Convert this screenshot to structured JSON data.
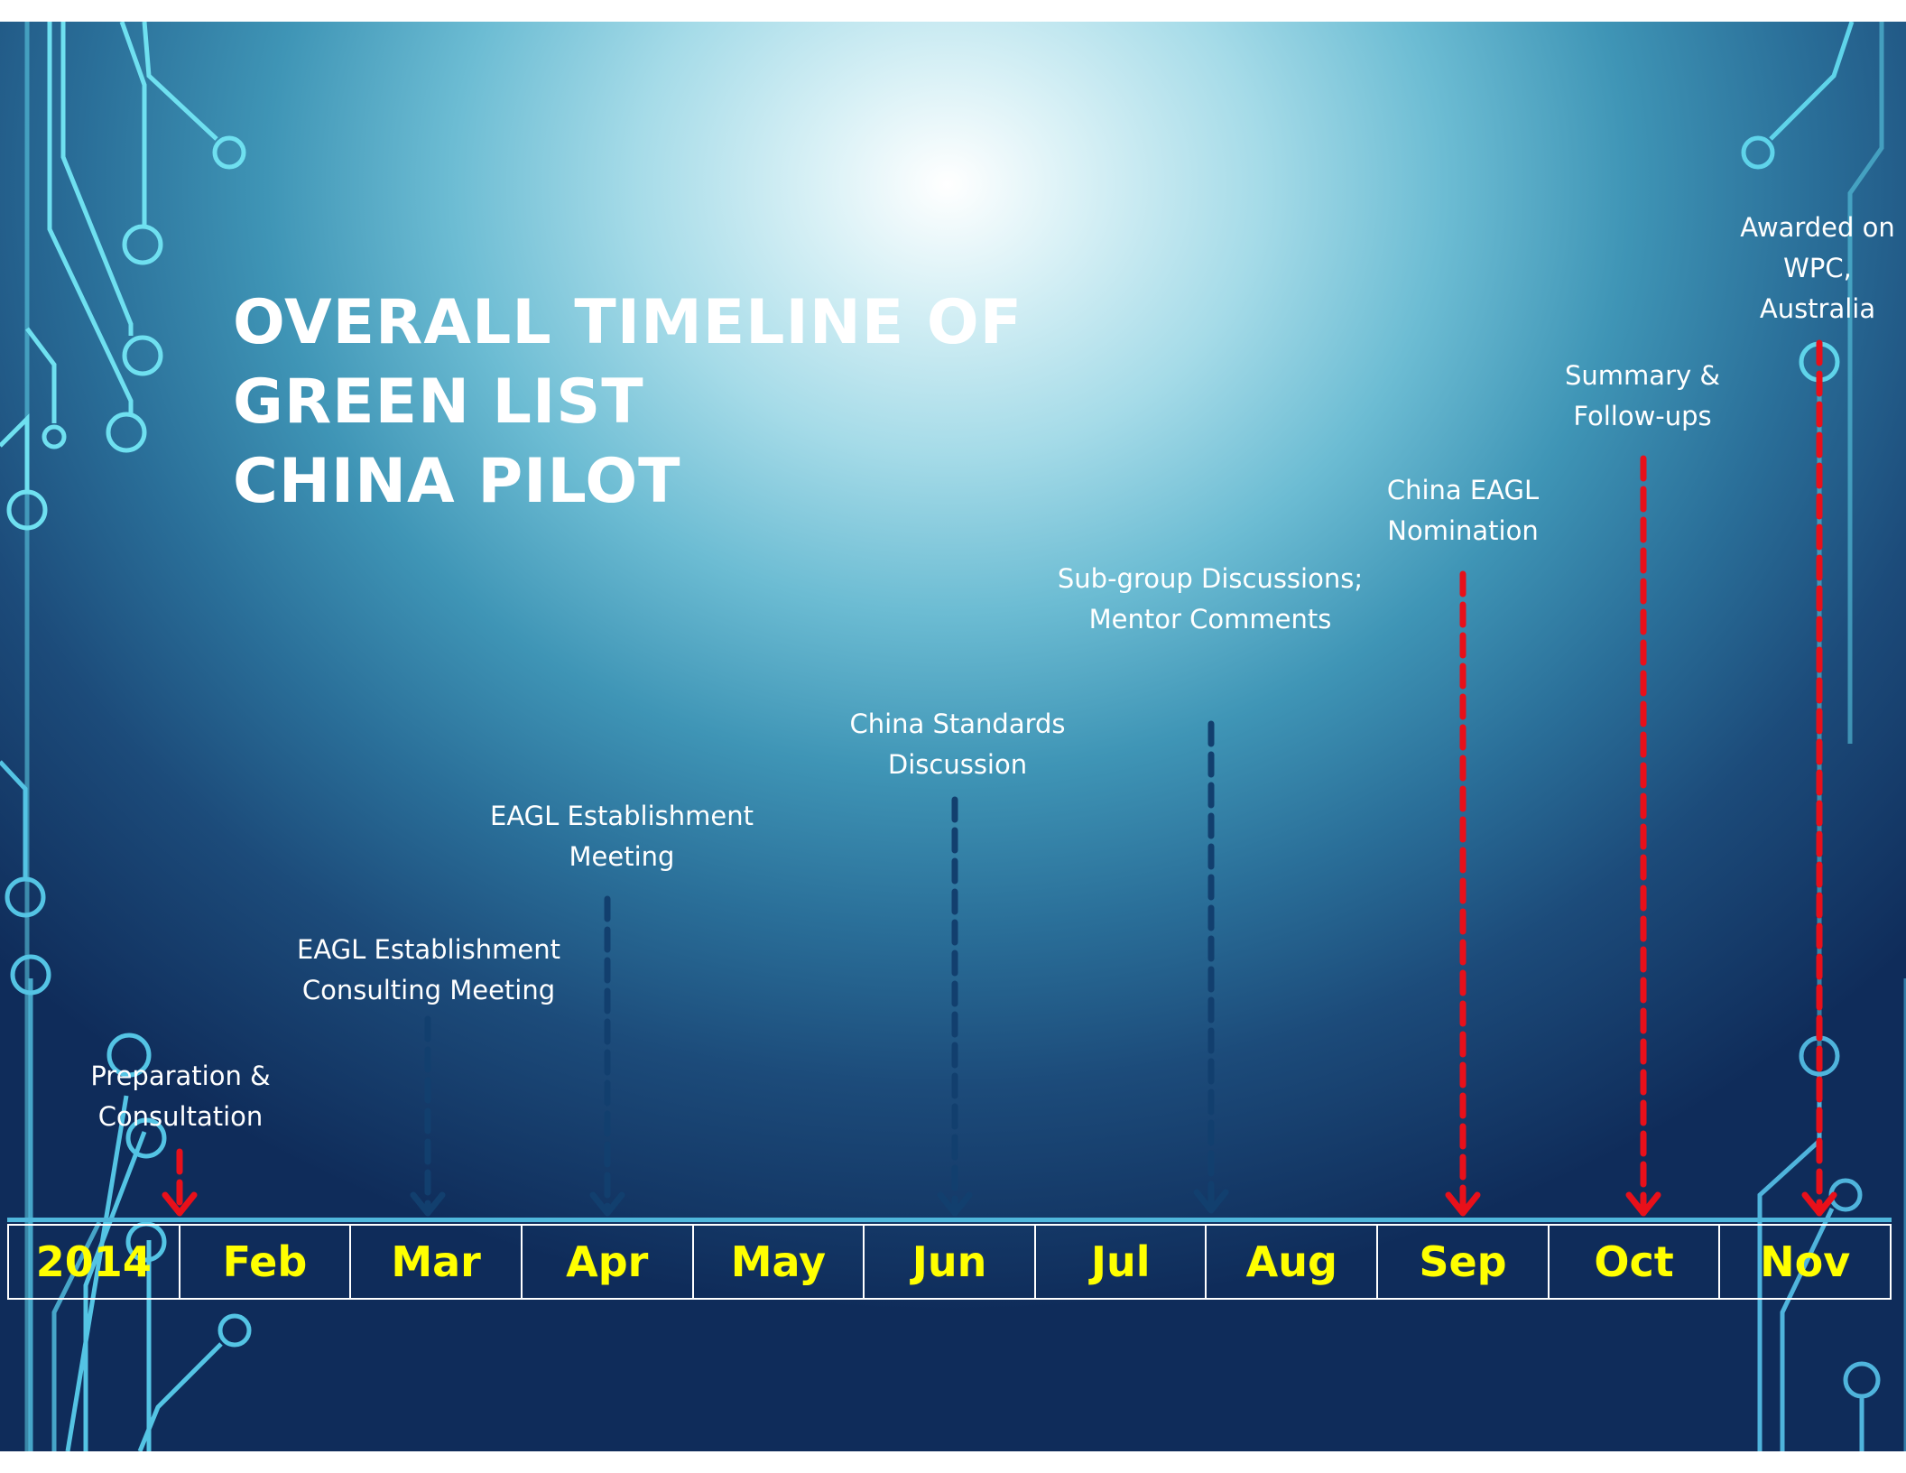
{
  "title": {
    "lines": [
      "OVERALL TIMELINE OF",
      "GREEN LIST",
      "CHINA PILOT"
    ]
  },
  "months": [
    "2014",
    "Feb",
    "Mar",
    "Apr",
    "May",
    "Jun",
    "Jul",
    "Aug",
    "Sep",
    "Oct",
    "Nov"
  ],
  "events": [
    {
      "lines": [
        "Preparation &",
        "Consultation"
      ],
      "month": "2014",
      "style": "red"
    },
    {
      "lines": [
        "EAGL Establishment",
        "Consulting Meeting"
      ],
      "month": "Mar",
      "style": "blue"
    },
    {
      "lines": [
        "EAGL Establishment",
        "Meeting"
      ],
      "month": "Apr",
      "style": "blue"
    },
    {
      "lines": [
        "China Standards",
        "Discussion"
      ],
      "month": "Jun",
      "style": "blue"
    },
    {
      "lines": [
        "Sub-group Discussions;",
        "Mentor Comments"
      ],
      "month": "Aug",
      "style": "blue"
    },
    {
      "lines": [
        "China EAGL",
        "Nomination"
      ],
      "month": "Sep",
      "style": "red"
    },
    {
      "lines": [
        "Summary &",
        "Follow-ups"
      ],
      "month": "Oct",
      "style": "red"
    },
    {
      "lines": [
        "Awarded on",
        "WPC,",
        "Australia"
      ],
      "month": "Nov",
      "style": "red"
    }
  ],
  "colors": {
    "month_text": "#ffff00",
    "red_arrow": "#e8101a",
    "blue_arrow": "#123f6e"
  }
}
